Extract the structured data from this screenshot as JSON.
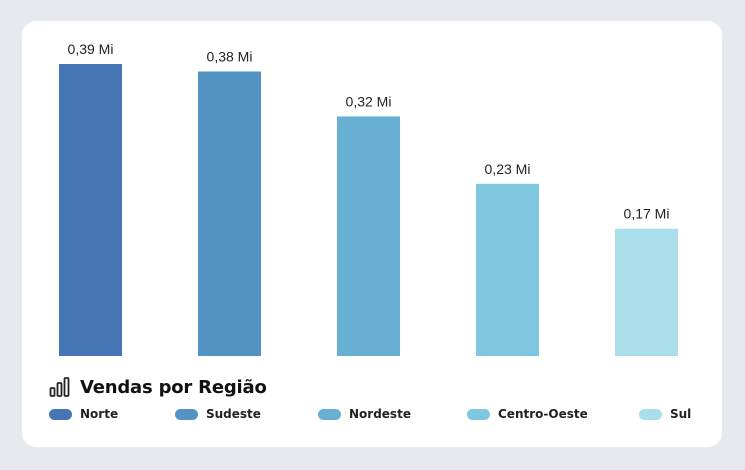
{
  "chart_data": {
    "type": "bar",
    "title": "Vendas por Região",
    "categories": [
      "Norte",
      "Sudeste",
      "Nordeste",
      "Centro-Oeste",
      "Sul"
    ],
    "values": [
      0.39,
      0.38,
      0.32,
      0.23,
      0.17
    ],
    "data_labels": [
      "0,39 Mi",
      "0,38 Mi",
      "0,32 Mi",
      "0,23 Mi",
      "0,17 Mi"
    ],
    "colors": [
      "#4575b4",
      "#5494c4",
      "#67b0d4",
      "#7fc7e0",
      "#abdeeb"
    ],
    "ylim": [
      0,
      0.39
    ],
    "grid": false,
    "legend_position": "bottom"
  },
  "icons": {
    "title_icon": "bar-chart-icon"
  }
}
